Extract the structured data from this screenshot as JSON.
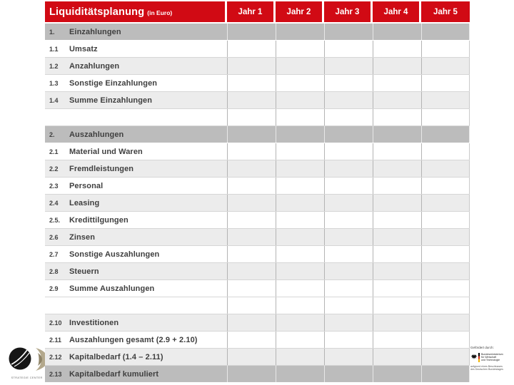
{
  "slide": {
    "title": "Liquiditätsplanung",
    "title_suffix": "(in Euro)"
  },
  "header": {
    "year_columns": [
      "Jahr 1",
      "Jahr 2",
      "Jahr 3",
      "Jahr 4",
      "Jahr 5"
    ]
  },
  "table": {
    "value_columns_count": 5,
    "all_value_cells_empty": true,
    "rows": [
      {
        "num": "1.",
        "label": "Einzahlungen",
        "type": "section"
      },
      {
        "num": "1.1",
        "label": "Umsatz",
        "type": "white"
      },
      {
        "num": "1.2",
        "label": "Anzahlungen",
        "type": "light"
      },
      {
        "num": "1.3",
        "label": "Sonstige Einzahlungen",
        "type": "white"
      },
      {
        "num": "1.4",
        "label": "Summe Einzahlungen",
        "type": "light"
      },
      {
        "num": "",
        "label": "",
        "type": "spacer"
      },
      {
        "num": "2.",
        "label": "Auszahlungen",
        "type": "section"
      },
      {
        "num": "2.1",
        "label": "Material und Waren",
        "type": "white"
      },
      {
        "num": "2.2",
        "label": "Fremdleistungen",
        "type": "light"
      },
      {
        "num": "2.3",
        "label": "Personal",
        "type": "white"
      },
      {
        "num": "2.4",
        "label": "Leasing",
        "type": "light"
      },
      {
        "num": "2.5.",
        "label": "Kredittilgungen",
        "type": "white"
      },
      {
        "num": "2.6",
        "label": "Zinsen",
        "type": "light"
      },
      {
        "num": "2.7",
        "label": "Sonstige Auszahlungen",
        "type": "white"
      },
      {
        "num": "2.8",
        "label": "Steuern",
        "type": "light"
      },
      {
        "num": "2.9",
        "label": "Summe Auszahlungen",
        "type": "white"
      },
      {
        "num": "",
        "label": "",
        "type": "spacer"
      },
      {
        "num": "2.10",
        "label": "Investitionen",
        "type": "light"
      },
      {
        "num": "2.11",
        "label": "Auszahlungen gesamt (2.9 + 2.10)",
        "type": "white"
      },
      {
        "num": "2.12",
        "label": "Kapitalbedarf (1.4 – 2.11)",
        "type": "light"
      },
      {
        "num": "2.13",
        "label": "Kapitalbedarf kumuliert",
        "type": "section"
      }
    ]
  },
  "colors": {
    "accent_red": "#d10a14",
    "section_row_gray": "#bcbcbc",
    "alt_row_gray": "#ececec",
    "label_text": "#3f3f3f"
  },
  "footer": {
    "left_logo_caption": "STRATEGIE CENTER",
    "right_logo": {
      "funded_by": "Gefördert durch:",
      "ministry_lines": [
        "Bundesministerium",
        "für Wirtschaft",
        "und Technologie"
      ],
      "note_lines": [
        "aufgrund eines Beschlusses",
        "des Deutschen Bundestages"
      ]
    }
  }
}
